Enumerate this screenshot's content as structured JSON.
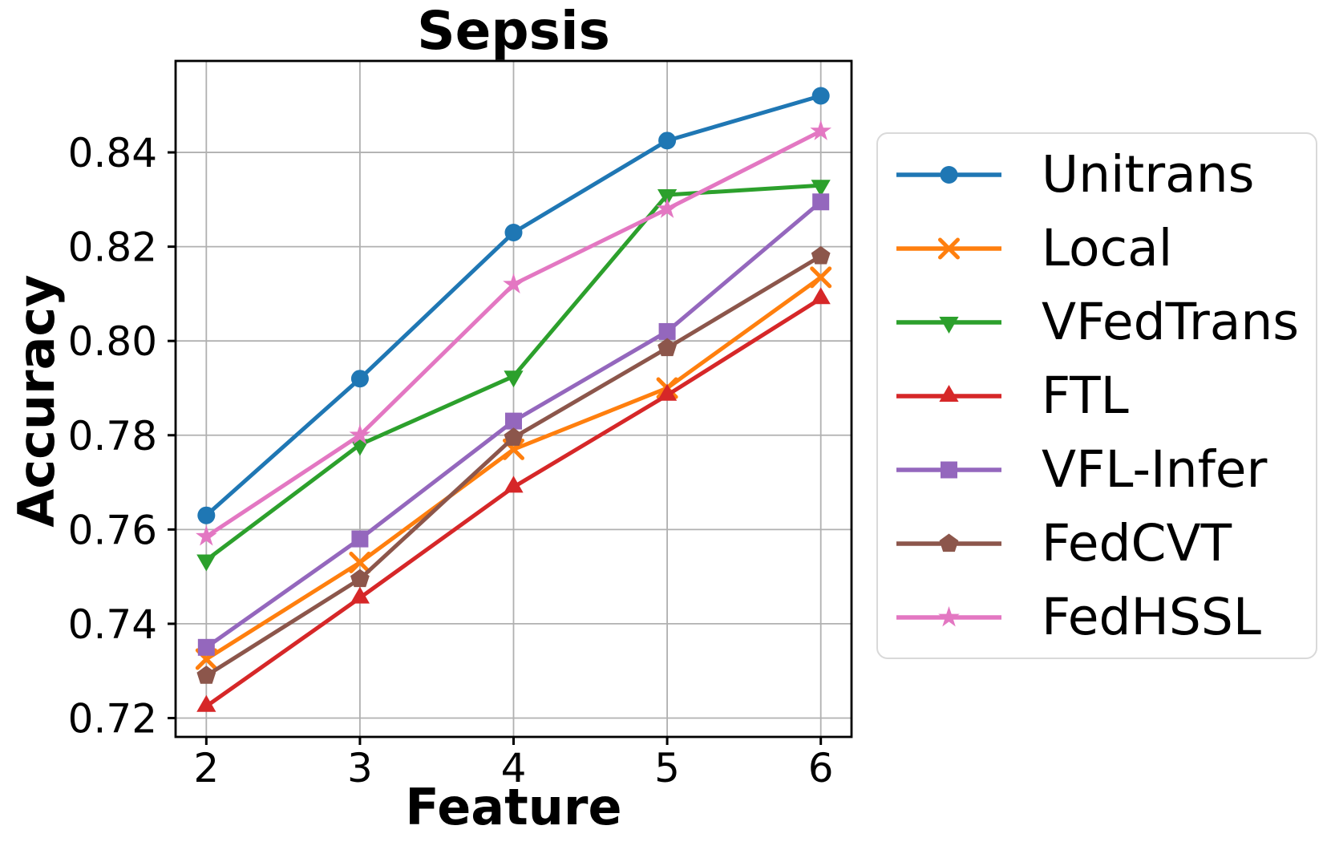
{
  "chart_data": {
    "type": "line",
    "title": "Sepsis",
    "xlabel": "Feature",
    "ylabel": "Accuracy",
    "x": [
      2,
      3,
      4,
      5,
      6
    ],
    "xlim": [
      1.8,
      6.2
    ],
    "ylim": [
      0.716,
      0.8594
    ],
    "xticks": [
      2,
      3,
      4,
      5,
      6
    ],
    "xtick_labels": [
      "2",
      "3",
      "4",
      "5",
      "6"
    ],
    "yticks": [
      0.72,
      0.74,
      0.76,
      0.78,
      0.8,
      0.82,
      0.84
    ],
    "ytick_labels": [
      "0.72",
      "0.74",
      "0.76",
      "0.78",
      "0.80",
      "0.82",
      "0.84"
    ],
    "grid": true,
    "legend_position": "right-outside",
    "series": [
      {
        "name": "Unitrans",
        "color": "#1f77b4",
        "marker": "circle",
        "values": [
          0.763,
          0.792,
          0.823,
          0.8425,
          0.852
        ]
      },
      {
        "name": "Local",
        "color": "#ff7f0e",
        "marker": "x",
        "values": [
          0.7325,
          0.753,
          0.777,
          0.79,
          0.8135
        ]
      },
      {
        "name": "VFedTrans",
        "color": "#2ca02c",
        "marker": "triangle-down",
        "values": [
          0.7535,
          0.778,
          0.7925,
          0.831,
          0.833
        ]
      },
      {
        "name": "FTL",
        "color": "#d62728",
        "marker": "triangle-up",
        "values": [
          0.7225,
          0.7455,
          0.769,
          0.7885,
          0.809
        ]
      },
      {
        "name": "VFL-Infer",
        "color": "#9467bd",
        "marker": "square",
        "values": [
          0.735,
          0.758,
          0.783,
          0.802,
          0.8295
        ]
      },
      {
        "name": "FedCVT",
        "color": "#8c564b",
        "marker": "pentagon",
        "values": [
          0.729,
          0.7495,
          0.7795,
          0.7985,
          0.818
        ]
      },
      {
        "name": "FedHSSL",
        "color": "#e377c2",
        "marker": "star",
        "values": [
          0.7585,
          0.78,
          0.812,
          0.828,
          0.8445
        ]
      }
    ]
  }
}
